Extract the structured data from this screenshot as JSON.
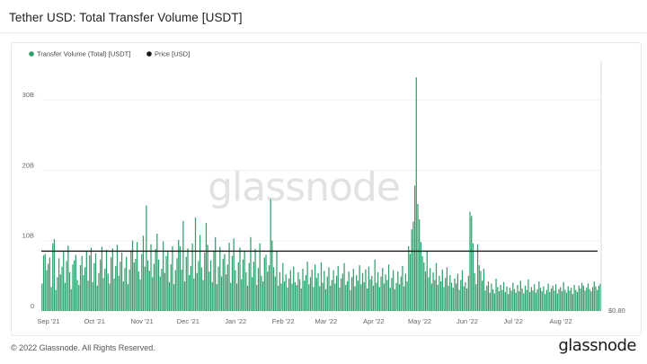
{
  "title": "Tether USD: Total Transfer Volume [USDT]",
  "footer": {
    "copyright": "© 2022 Glassnode. All Rights Reserved.",
    "brand": "glassnode"
  },
  "watermark": "glassnode",
  "colors": {
    "volume": "#2e9e6b",
    "price": "#1a1a1a",
    "grid": "#f0f0f0",
    "axis_text": "#666666"
  },
  "chart_data": {
    "type": "bar",
    "legend": {
      "placement": "top-left",
      "items": [
        {
          "name": "Transfer Volume (Total) [USDT]",
          "color": "#2e9e6b",
          "marker": "dot"
        },
        {
          "name": "Price [USD]",
          "color": "#1a1a1a",
          "marker": "dot"
        }
      ]
    },
    "y_left": {
      "ticks": [
        "0",
        "10B",
        "20B",
        "30B"
      ],
      "tick_values": [
        0,
        10,
        20,
        30
      ],
      "unit": "billion USDT",
      "range": [
        0,
        35.5
      ]
    },
    "y_right": {
      "tick_label": "$0.80"
    },
    "x_ticks": [
      "Sep '21",
      "Oct '21",
      "Nov '21",
      "Dec '21",
      "Jan '22",
      "Feb '22",
      "Mar '22",
      "Apr '22",
      "May '22",
      "Jun '22",
      "Jul '22",
      "Aug '22"
    ],
    "date_range": [
      "2021-09-01",
      "2022-08-31"
    ],
    "price_series": {
      "name": "Price [USD]",
      "approx_value": 1.0
    },
    "grid": true,
    "series": [
      {
        "name": "Transfer Volume (Total) [USDT]",
        "unit": "billion USDT",
        "values": [
          3.9,
          7.9,
          8.1,
          5.8,
          6.7,
          7.6,
          3.4,
          9.6,
          10.2,
          3.0,
          4.8,
          7.5,
          5.2,
          6.3,
          8.4,
          4.0,
          7.1,
          9.3,
          5.5,
          3.1,
          6.6,
          7.2,
          8.0,
          4.4,
          3.7,
          6.5,
          7.8,
          5.1,
          6.2,
          8.5,
          4.3,
          7.9,
          9.0,
          4.1,
          6.8,
          8.2,
          3.6,
          5.4,
          7.3,
          9.1,
          4.7,
          6.0,
          8.7,
          5.3,
          3.9,
          7.6,
          8.9,
          4.6,
          6.4,
          9.4,
          5.0,
          7.0,
          8.3,
          4.2,
          6.1,
          7.7,
          3.8,
          5.9,
          8.6,
          10.0,
          6.9,
          7.4,
          9.8,
          5.6,
          4.5,
          8.1,
          10.7,
          6.3,
          15.0,
          7.2,
          5.7,
          9.5,
          4.8,
          6.7,
          8.8,
          11.0,
          7.3,
          4.9,
          6.0,
          9.9,
          5.4,
          7.8,
          8.4,
          4.1,
          6.6,
          9.2,
          3.8,
          5.8,
          7.5,
          10.1,
          9.2,
          5.9,
          12.8,
          4.2,
          7.7,
          8.9,
          5.1,
          6.4,
          9.6,
          4.6,
          13.3,
          5.4,
          7.1,
          10.8,
          6.2,
          4.4,
          8.3,
          12.5,
          9.4,
          5.6,
          7.2,
          4.1,
          8.6,
          10.5,
          3.8,
          6.3,
          9.1,
          4.9,
          7.4,
          8.1,
          5.2,
          6.6,
          9.7,
          4.0,
          7.8,
          10.3,
          5.8,
          3.9,
          6.9,
          9.0,
          4.5,
          7.3,
          8.4,
          5.5,
          3.6,
          6.8,
          10.5,
          4.8,
          7.0,
          8.8,
          3.7,
          6.1,
          9.6,
          5.0,
          4.2,
          7.6,
          8.0,
          5.6,
          6.5,
          15.9,
          10.0,
          6.2,
          4.9,
          8.5,
          3.6,
          5.5,
          3.9,
          6.8,
          4.2,
          5.2,
          3.3,
          4.6,
          5.8,
          3.9,
          6.3,
          4.1,
          3.7,
          5.5,
          4.5,
          3.2,
          6.0,
          4.3,
          5.1,
          7.0,
          3.8,
          4.8,
          5.9,
          3.4,
          6.6,
          4.7,
          5.4,
          3.5,
          6.9,
          4.0,
          5.7,
          3.1,
          4.9,
          6.2,
          3.6,
          4.4,
          5.8,
          3.9,
          5.0,
          6.4,
          3.3,
          4.6,
          5.3,
          6.8,
          3.7,
          4.2,
          5.6,
          3.0,
          4.8,
          6.0,
          3.5,
          5.1,
          4.3,
          6.5,
          3.8,
          5.4,
          4.1,
          5.9,
          3.2,
          6.3,
          4.5,
          5.0,
          3.6,
          7.3,
          4.0,
          5.5,
          3.4,
          4.9,
          6.1,
          3.9,
          5.2,
          4.4,
          6.6,
          3.3,
          4.7,
          5.8,
          3.1,
          4.0,
          5.6,
          3.8,
          4.9,
          6.4,
          3.5,
          5.3,
          4.2,
          9.2,
          8.1,
          11.6,
          12.7,
          17.8,
          33.2,
          15.2,
          13.0,
          9.8,
          7.8,
          6.9,
          5.6,
          8.5,
          4.8,
          6.1,
          3.9,
          5.5,
          4.4,
          6.8,
          3.7,
          5.0,
          4.2,
          5.9,
          3.4,
          4.7,
          6.2,
          3.6,
          5.1,
          4.0,
          3.3,
          4.6,
          3.9,
          5.3,
          3.0,
          4.4,
          5.8,
          3.5,
          4.1,
          3.2,
          5.0,
          14.1,
          13.5,
          9.6,
          5.4,
          3.8,
          9.5,
          6.5,
          5.7,
          4.3,
          6.0,
          2.9,
          3.6,
          4.2,
          2.6,
          3.9,
          3.1,
          2.5,
          4.6,
          3.4,
          2.8,
          3.7,
          3.0,
          4.1,
          2.7,
          3.5,
          2.4,
          3.3,
          2.9,
          4.0,
          3.1,
          2.6,
          3.7,
          2.8,
          4.3,
          3.2,
          2.5,
          3.6,
          3.0,
          4.5,
          2.7,
          3.4,
          2.9,
          3.8,
          2.6,
          3.1,
          4.2,
          3.3,
          2.8,
          3.5,
          2.4,
          3.0,
          3.9,
          2.7,
          3.2,
          3.6,
          2.9,
          3.8,
          2.5,
          3.1,
          3.4,
          2.8,
          4.1,
          3.0,
          2.6,
          3.5,
          2.9,
          3.3,
          2.4,
          3.7,
          3.0,
          2.7,
          3.6,
          3.2,
          4.0,
          3.6,
          2.9,
          3.3,
          3.9,
          3.1,
          2.8,
          3.4,
          4.2,
          3.5,
          3.0,
          3.6,
          3.9
        ]
      }
    ]
  }
}
